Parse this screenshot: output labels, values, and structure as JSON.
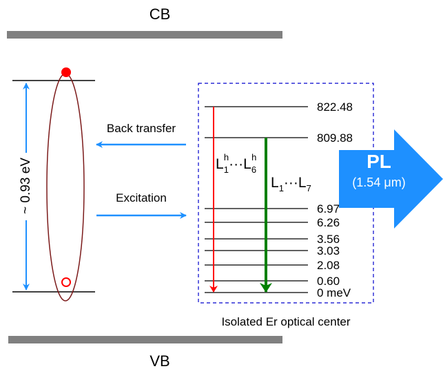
{
  "bands": {
    "conduction": "CB",
    "valence": "VB"
  },
  "gap_label": "~ 0.93 eV",
  "processes": {
    "back_transfer": "Back transfer",
    "excitation": "Excitation"
  },
  "levels": [
    "822.48",
    "809.88",
    "6.97",
    "6.26",
    "3.56",
    "3.03",
    "2.08",
    "0.60",
    "0 meV"
  ],
  "hot_transitions": [
    "L",
    "1",
    "h",
    "···",
    "L",
    "6",
    "h"
  ],
  "transitions": [
    "L",
    "1",
    "···",
    "L",
    "7"
  ],
  "emission": {
    "title": "PL",
    "wavelength": "(1.54 μm)"
  },
  "caption": "Isolated Er optical center"
}
